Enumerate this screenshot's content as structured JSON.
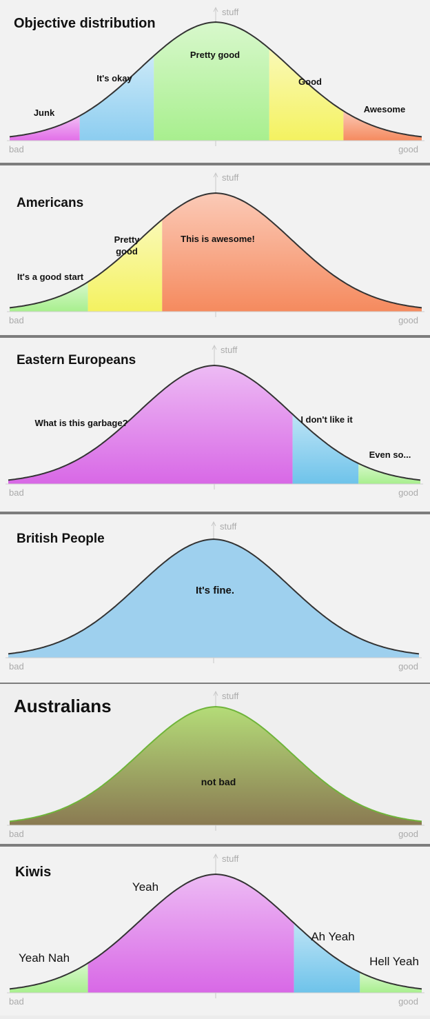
{
  "chart_data": [
    {
      "type": "area",
      "title": "Objective distribution",
      "y_axis_label": "stuff",
      "x_min_label": "bad",
      "x_max_label": "good",
      "segments": [
        {
          "label": "Junk",
          "from": 0.0,
          "to": 0.17,
          "color": "#e26ee8"
        },
        {
          "label": "It's okay",
          "from": 0.17,
          "to": 0.35,
          "color": "#8ccdf0"
        },
        {
          "label": "Pretty good",
          "from": 0.35,
          "to": 0.63,
          "color": "#a8ef8e"
        },
        {
          "label": "Good",
          "from": 0.63,
          "to": 0.81,
          "color": "#f4f260"
        },
        {
          "label": "Awesome",
          "from": 0.81,
          "to": 1.0,
          "color": "#f58a5e"
        }
      ]
    },
    {
      "type": "area",
      "title": "Americans",
      "y_axis_label": "stuff",
      "x_min_label": "bad",
      "x_max_label": "good",
      "segments": [
        {
          "label": "It's a good start",
          "from": 0.0,
          "to": 0.19,
          "color": "#a8ef8e"
        },
        {
          "label": "Pretty good",
          "from": 0.19,
          "to": 0.37,
          "color": "#f4f260"
        },
        {
          "label": "This is awesome!",
          "from": 0.37,
          "to": 1.0,
          "color": "#f58a5e"
        }
      ]
    },
    {
      "type": "area",
      "title": "Eastern Europeans",
      "y_axis_label": "stuff",
      "x_min_label": "bad",
      "x_max_label": "good",
      "segments": [
        {
          "label": "What is this garbage?",
          "from": 0.0,
          "to": 0.69,
          "color": "#d868e6"
        },
        {
          "label": "I don't like it",
          "from": 0.69,
          "to": 0.85,
          "color": "#6ec3ea"
        },
        {
          "label": "Even so...",
          "from": 0.85,
          "to": 1.0,
          "color": "#a8ef8e"
        }
      ]
    },
    {
      "type": "area",
      "title": "British People",
      "y_axis_label": "stuff",
      "x_min_label": "bad",
      "x_max_label": "good",
      "segments": [
        {
          "label": "It's fine.",
          "from": 0.0,
          "to": 1.0,
          "color": "#9ed0ee"
        }
      ]
    },
    {
      "type": "area",
      "title": "Australians",
      "y_axis_label": "stuff",
      "x_min_label": "bad",
      "x_max_label": "good",
      "segments": [
        {
          "label": "not bad",
          "from": 0.0,
          "to": 1.0,
          "color": "#a8ce72"
        }
      ]
    },
    {
      "type": "area",
      "title": "Kiwis",
      "y_axis_label": "stuff",
      "x_min_label": "bad",
      "x_max_label": "good",
      "segments": [
        {
          "label": "Yeah Nah",
          "from": 0.0,
          "to": 0.19,
          "color": "#a8ef8e"
        },
        {
          "label": "Yeah",
          "from": 0.19,
          "to": 0.69,
          "color": "#d868e6"
        },
        {
          "label": "Ah Yeah",
          "from": 0.69,
          "to": 0.85,
          "color": "#6ec3ea"
        },
        {
          "label": "Hell Yeah",
          "from": 0.85,
          "to": 1.0,
          "color": "#a8ef8e"
        }
      ]
    }
  ]
}
